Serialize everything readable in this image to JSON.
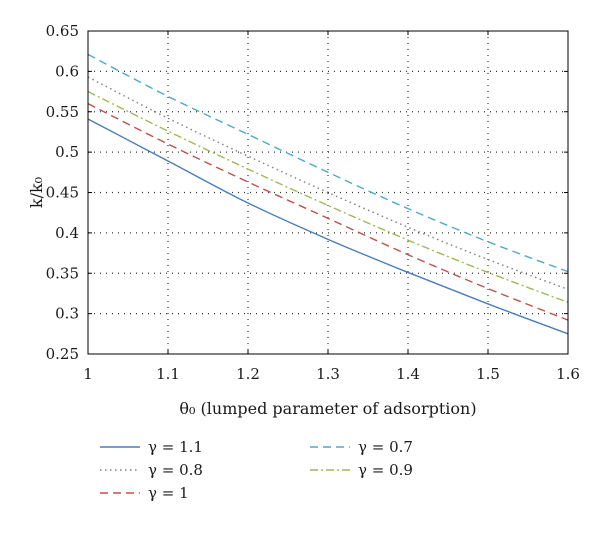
{
  "chart_data": {
    "type": "line",
    "title": "",
    "xlabel": "θ₀ (lumped parameter of adsorption)",
    "ylabel": "k/k₀",
    "xlim": [
      1,
      1.6
    ],
    "ylim": [
      0.25,
      0.65
    ],
    "xticks": [
      "1",
      "1.1",
      "1.2",
      "1.3",
      "1.4",
      "1.5",
      "1.6"
    ],
    "yticks": [
      "0.25",
      "0.3",
      "0.35",
      "0.4",
      "0.45",
      "0.5",
      "0.55",
      "0.6",
      "0.65"
    ],
    "grid": true,
    "legend_position": "bottom",
    "x": [
      1.0,
      1.1,
      1.2,
      1.3,
      1.4,
      1.5,
      1.6
    ],
    "series": [
      {
        "name": "γ = 1.1",
        "color": "#4a7ebb",
        "dash": "solid",
        "values": [
          0.541,
          0.489,
          0.437,
          0.392,
          0.351,
          0.312,
          0.275
        ]
      },
      {
        "name": "γ = 0.7",
        "color": "#4bacc6",
        "dash": "dashed",
        "values": [
          0.621,
          0.569,
          0.522,
          0.475,
          0.43,
          0.389,
          0.352
        ]
      },
      {
        "name": "γ = 0.8",
        "color": "#7f7f7f",
        "dash": "dotted",
        "values": [
          0.593,
          0.542,
          0.495,
          0.45,
          0.407,
          0.367,
          0.33
        ]
      },
      {
        "name": "γ = 0.9",
        "color": "#9bbb59",
        "dash": "dashdot",
        "values": [
          0.575,
          0.526,
          0.479,
          0.434,
          0.391,
          0.351,
          0.314
        ]
      },
      {
        "name": "γ = 1",
        "color": "#c0504d",
        "dash": "dashed",
        "values": [
          0.56,
          0.51,
          0.463,
          0.418,
          0.373,
          0.331,
          0.292
        ]
      }
    ],
    "legend_rows": [
      [
        "γ = 1.1",
        "γ = 0.7"
      ],
      [
        "γ = 0.8",
        "γ = 0.9"
      ],
      [
        "γ = 1",
        ""
      ]
    ]
  }
}
